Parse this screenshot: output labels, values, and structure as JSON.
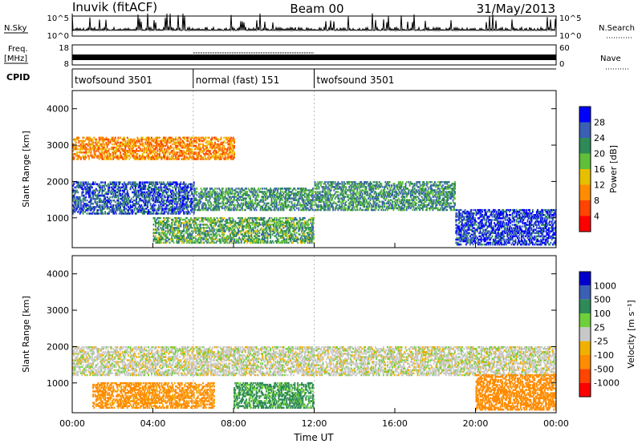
{
  "header": {
    "station": "Inuvik (fitACF)",
    "beam": "Beam 00",
    "date": "31/May/2013"
  },
  "noise_panel": {
    "left_label": "N.Sky",
    "right_label": "N.Search",
    "left_ticks": [
      "10^5",
      "10^0"
    ],
    "right_ticks": [
      "10^5",
      "10^0"
    ]
  },
  "freq_panel": {
    "left_label_1": "Freq.",
    "left_label_2": "[MHz]",
    "right_label": "Nave",
    "left_ticks": [
      "18",
      "8"
    ],
    "right_ticks": [
      "60",
      "0"
    ]
  },
  "cpid": {
    "label": "CPID",
    "segments": [
      {
        "name": "twofsound 3501",
        "start_hour": 0,
        "end_hour": 6
      },
      {
        "name": "normal (fast) 151",
        "start_hour": 6,
        "end_hour": 12
      },
      {
        "name": "twofsound 3501",
        "start_hour": 12,
        "end_hour": 24
      }
    ]
  },
  "chart_data": [
    {
      "type": "heatmap",
      "quantity": "Power",
      "xlabel": "",
      "ylabel": "Slant Range [km]",
      "xlim": [
        0,
        24
      ],
      "ylim": [
        180,
        4500
      ],
      "yticks": [
        "1000",
        "2000",
        "3000",
        "4000"
      ],
      "colorbar_label": "Power [dB]",
      "colorbar_ticks": [
        "4",
        "8",
        "12",
        "16",
        "20",
        "24",
        "28"
      ],
      "colorbar_colors": [
        "#0000ff",
        "#3a5fb4",
        "#2e8b57",
        "#5fbf3a",
        "#e6c000",
        "#ff8c00",
        "#ff4500",
        "#ff0000"
      ],
      "echo_bands": [
        {
          "start": 0,
          "end": 6,
          "range_min": 1100,
          "range_max": 2000,
          "level": 26
        },
        {
          "start": 6,
          "end": 12,
          "range_min": 1200,
          "range_max": 1800,
          "level": 22
        },
        {
          "start": 12,
          "end": 19,
          "range_min": 1200,
          "range_max": 2000,
          "level": 22
        },
        {
          "start": 19,
          "end": 24,
          "range_min": 250,
          "range_max": 1200,
          "level": 28
        },
        {
          "start": 4,
          "end": 12,
          "range_min": 300,
          "range_max": 1000,
          "level": 20
        },
        {
          "start": 0,
          "end": 8,
          "range_min": 2600,
          "range_max": 3200,
          "level": 10
        }
      ]
    },
    {
      "type": "heatmap",
      "quantity": "Velocity",
      "xlabel": "Time UT",
      "ylabel": "Slant Range [km]",
      "xlim": [
        0,
        24
      ],
      "ylim": [
        180,
        4500
      ],
      "xticks": [
        "00:00",
        "04:00",
        "08:00",
        "12:00",
        "16:00",
        "20:00",
        "00:00"
      ],
      "yticks": [
        "1000",
        "2000",
        "3000",
        "4000"
      ],
      "colorbar_label": "Velocity [m s⁻¹]",
      "colorbar_ticks": [
        "1000",
        "500",
        "100",
        "25",
        "-25",
        "-100",
        "-500",
        "-1000"
      ],
      "colorbar_colors": [
        "#0000cd",
        "#3a5fb4",
        "#2e8b57",
        "#6fcf3a",
        "#c8c8c8",
        "#f0b000",
        "#ff8c00",
        "#ff4500",
        "#ff0000"
      ],
      "echo_bands": [
        {
          "start": 0,
          "end": 24,
          "range_min": 1200,
          "range_max": 2000,
          "level": 0
        },
        {
          "start": 1,
          "end": 7,
          "range_min": 300,
          "range_max": 1000,
          "level": -200
        },
        {
          "start": 8,
          "end": 12,
          "range_min": 300,
          "range_max": 1000,
          "level": 150
        },
        {
          "start": 20,
          "end": 24,
          "range_min": 250,
          "range_max": 1200,
          "level": -300
        }
      ]
    }
  ]
}
